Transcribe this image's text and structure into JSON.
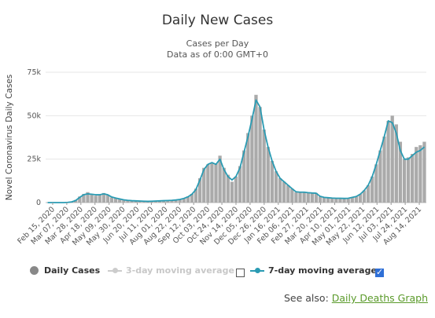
{
  "header": {
    "title": "Daily New Cases",
    "subtitle_line1": "Cases per Day",
    "subtitle_line2": "Data as of 0:00 GMT+0"
  },
  "legend": {
    "daily_cases": "Daily Cases",
    "three_day": "3-day moving average",
    "seven_day": "7-day moving average",
    "three_day_checked": false,
    "seven_day_checked": true
  },
  "see_also": {
    "prefix": "See also:",
    "link": "Daily Deaths Graph"
  },
  "colors": {
    "bars": "#aaaaaa",
    "moving_average": "#2a9bb3",
    "three_day_faded": "#cccccc",
    "checkbox_checked": "#2f6fd6",
    "link": "#5a9a2a"
  },
  "chart_data": {
    "type": "bar",
    "title": "Daily New Cases",
    "subtitle": "Cases per Day",
    "ylabel": "Novel Coronavirus Daily Cases",
    "xlabel": "",
    "ylim": [
      0,
      75000
    ],
    "y_ticks": [
      0,
      25000,
      50000,
      75000
    ],
    "y_tick_labels": [
      "0",
      "25k",
      "50k",
      "75k"
    ],
    "grid": "horizontal",
    "legend_position": "bottom",
    "x_tick_labels": [
      "Feb 15, 2020",
      "Mar 07, 2020",
      "Mar 28, 2020",
      "Apr 18, 2020",
      "May 09, 2020",
      "May 30, 2020",
      "Jun 20, 2020",
      "Jul 11, 2020",
      "Aug 01, 2020",
      "Aug 22, 2020",
      "Sep 12, 2020",
      "Oct 03, 2020",
      "Oct 24, 2020",
      "Nov 14, 2020",
      "Dec 05, 2020",
      "Dec 26, 2020",
      "Jan 16, 2021",
      "Feb 06, 2021",
      "Feb 27, 2021",
      "Mar 20, 2021",
      "Apr 10, 2021",
      "May 01, 2021",
      "May 22, 2021",
      "Jun 12, 2021",
      "Jul 03, 2021",
      "Jul 24, 2021",
      "Aug 14, 2021"
    ],
    "series": [
      {
        "name": "Daily Cases",
        "type": "bar",
        "values": [
          0,
          0,
          0,
          0,
          0,
          100,
          500,
          1500,
          3500,
          5000,
          6000,
          5000,
          4000,
          4500,
          5500,
          4500,
          3000,
          2500,
          2000,
          1500,
          1300,
          1100,
          1000,
          900,
          800,
          700,
          800,
          900,
          1000,
          1100,
          1200,
          1300,
          1500,
          1800,
          2500,
          3500,
          5000,
          8000,
          14000,
          20000,
          22000,
          23000,
          22500,
          27000,
          20000,
          16000,
          12000,
          15000,
          21000,
          30000,
          40000,
          50000,
          62000,
          55000,
          42000,
          32000,
          24000,
          18000,
          14000,
          12000,
          10000,
          8000,
          6000,
          6000,
          6000,
          5500,
          5500,
          5500,
          3500,
          3000,
          2800,
          2600,
          2500,
          2500,
          2400,
          2500,
          3000,
          3500,
          5000,
          7000,
          10000,
          15000,
          22000,
          30000,
          38000,
          47000,
          50000,
          45000,
          35000,
          25000,
          26000,
          28000,
          32000,
          33000,
          35000
        ]
      },
      {
        "name": "7-day moving average",
        "type": "line",
        "values": [
          0,
          0,
          0,
          0,
          0,
          100,
          400,
          1200,
          3000,
          4500,
          5000,
          4800,
          4500,
          4500,
          5000,
          4500,
          3200,
          2600,
          2100,
          1600,
          1300,
          1100,
          1000,
          900,
          800,
          700,
          800,
          900,
          1000,
          1100,
          1200,
          1300,
          1500,
          1800,
          2400,
          3300,
          4800,
          7500,
          13000,
          19000,
          22000,
          23000,
          22000,
          25000,
          19000,
          15000,
          13000,
          15000,
          20000,
          29000,
          38000,
          48000,
          59000,
          55000,
          42000,
          32000,
          24000,
          18000,
          14000,
          12000,
          10000,
          8000,
          6200,
          6000,
          6000,
          5700,
          5500,
          5400,
          3600,
          3000,
          2800,
          2600,
          2500,
          2500,
          2400,
          2500,
          3000,
          3500,
          4800,
          7000,
          10000,
          15000,
          22000,
          30000,
          38000,
          47000,
          46000,
          40000,
          30000,
          25000,
          25000,
          27000,
          29000,
          30000,
          32000
        ]
      }
    ]
  }
}
